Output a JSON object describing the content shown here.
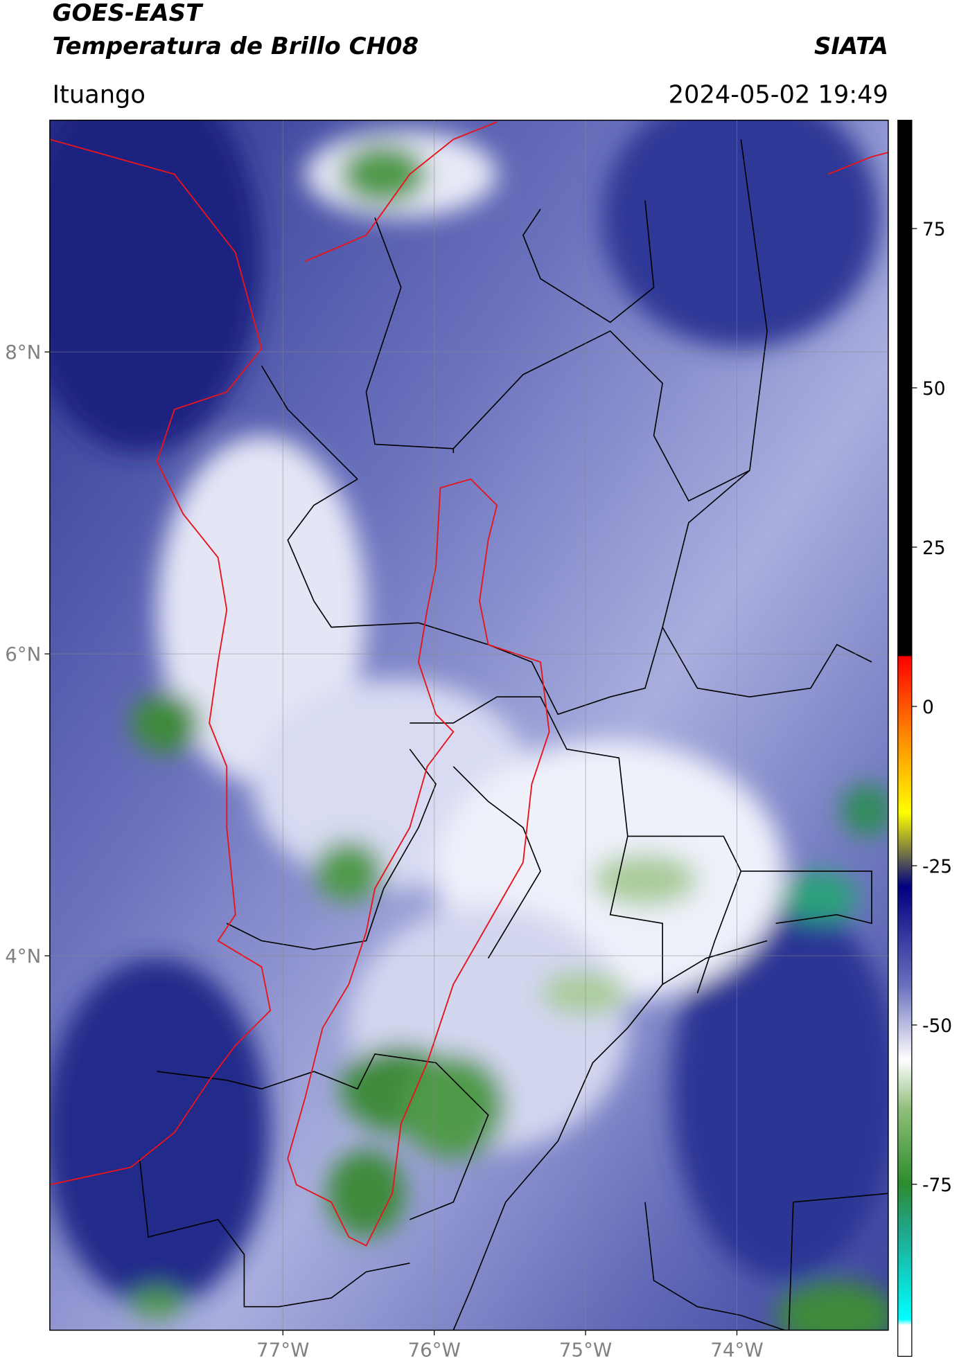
{
  "header": {
    "title_line1": "GOES-EAST",
    "title_line2": "Temperatura de Brillo CH08",
    "brand": "SIATA",
    "location": "Ituango",
    "datetime": "2024-05-02 19:49"
  },
  "map": {
    "xlim": [
      -78.54,
      -73.0
    ],
    "ylim": [
      1.52,
      9.535
    ],
    "xticks": [
      {
        "value": -77,
        "label": "77°W"
      },
      {
        "value": -76,
        "label": "76°W"
      },
      {
        "value": -75,
        "label": "75°W"
      },
      {
        "value": -74,
        "label": "74°W"
      }
    ],
    "yticks": [
      {
        "value": 8,
        "label": "8°N"
      },
      {
        "value": 6,
        "label": "6°N"
      },
      {
        "value": 4,
        "label": "4°N"
      }
    ],
    "grid": true
  },
  "colorbar": {
    "lim": [
      -102,
      92
    ],
    "ticks": [
      75,
      50,
      25,
      0,
      -25,
      -50,
      -75
    ]
  }
}
